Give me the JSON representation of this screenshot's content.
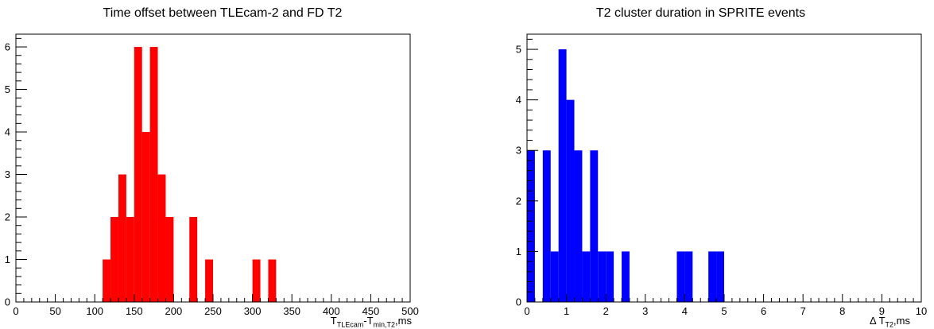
{
  "chart_data": [
    {
      "type": "bar",
      "title": "Time offset between TLEcam-2 and FD T2",
      "xlabel": {
        "main": "T",
        "sub1": "TLEcam",
        "sep": "-T",
        "sub2": "min,T2",
        "unit": ",ms"
      },
      "ylabel": "",
      "xlim": [
        0,
        500
      ],
      "ylim": [
        0,
        6.3
      ],
      "xticks": [
        0,
        50,
        100,
        150,
        200,
        250,
        300,
        350,
        400,
        450,
        500
      ],
      "yticks": [
        0,
        1,
        2,
        3,
        4,
        5,
        6
      ],
      "bin_width": 10,
      "color": "#ff0000",
      "bins": [
        {
          "x": 110,
          "value": 1
        },
        {
          "x": 120,
          "value": 2
        },
        {
          "x": 130,
          "value": 3
        },
        {
          "x": 140,
          "value": 2
        },
        {
          "x": 150,
          "value": 6
        },
        {
          "x": 160,
          "value": 4
        },
        {
          "x": 170,
          "value": 6
        },
        {
          "x": 180,
          "value": 3
        },
        {
          "x": 190,
          "value": 2
        },
        {
          "x": 220,
          "value": 2
        },
        {
          "x": 240,
          "value": 1
        },
        {
          "x": 300,
          "value": 1
        },
        {
          "x": 320,
          "value": 1
        }
      ]
    },
    {
      "type": "bar",
      "title": "T2 cluster duration in SPRITE events",
      "xlabel": {
        "main": "Δ T",
        "sub1": "T2",
        "sep": "",
        "sub2": "",
        "unit": ",ms"
      },
      "ylabel": "",
      "xlim": [
        0,
        10
      ],
      "ylim": [
        0,
        5.3
      ],
      "xticks": [
        0,
        1,
        2,
        3,
        4,
        5,
        6,
        7,
        8,
        9,
        10
      ],
      "yticks": [
        0,
        1,
        2,
        3,
        4,
        5
      ],
      "bin_width": 0.2,
      "color": "#0000ff",
      "bins": [
        {
          "x": 0.0,
          "value": 3
        },
        {
          "x": 0.4,
          "value": 3
        },
        {
          "x": 0.6,
          "value": 1
        },
        {
          "x": 0.8,
          "value": 5
        },
        {
          "x": 1.0,
          "value": 4
        },
        {
          "x": 1.2,
          "value": 3
        },
        {
          "x": 1.4,
          "value": 1
        },
        {
          "x": 1.6,
          "value": 3
        },
        {
          "x": 1.8,
          "value": 1
        },
        {
          "x": 2.0,
          "value": 1
        },
        {
          "x": 2.4,
          "value": 1
        },
        {
          "x": 3.8,
          "value": 1
        },
        {
          "x": 4.0,
          "value": 1
        },
        {
          "x": 4.6,
          "value": 1
        },
        {
          "x": 4.8,
          "value": 1
        }
      ]
    }
  ]
}
